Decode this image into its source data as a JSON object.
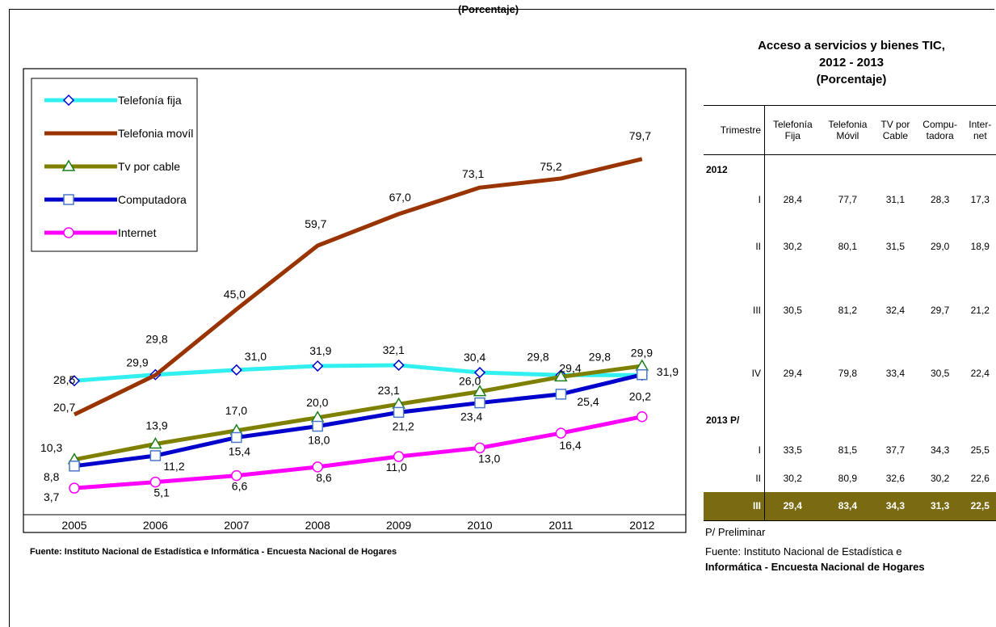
{
  "header": {
    "title": "(Porcentaje)"
  },
  "chart_data": {
    "type": "line",
    "categories": [
      "2005",
      "2006",
      "2007",
      "2008",
      "2009",
      "2010",
      "2011",
      "2012"
    ],
    "ylim": [
      0,
      90
    ],
    "grid": false,
    "legend_position": "top-left",
    "series": [
      {
        "name": "Telefonía fija",
        "color": "#33f0f0",
        "marker": "diamond",
        "values": [
          28.5,
          29.9,
          31.0,
          31.9,
          32.1,
          30.4,
          29.8,
          29.8
        ],
        "labels": [
          "28,5",
          "29,9",
          "31,0",
          "31,9",
          "32,1",
          "30,4",
          "29,8",
          "29,8"
        ]
      },
      {
        "name": "Telefonia movíl",
        "color": "#993300",
        "marker": "none",
        "values": [
          20.7,
          29.8,
          45.0,
          59.7,
          67.0,
          73.1,
          75.2,
          79.7
        ],
        "labels": [
          "20,7",
          "29,8",
          "45,0",
          "59,7",
          "67,0",
          "73,1",
          "75,2",
          "79,7"
        ]
      },
      {
        "name": "Tv por cable",
        "color": "#808000",
        "marker": "triangle",
        "values": [
          10.3,
          13.9,
          17.0,
          20.0,
          23.1,
          26.0,
          29.4,
          31.9
        ],
        "labels": [
          "10,3",
          "13,9",
          "17,0",
          "20,0",
          "23,1",
          "26,0",
          "29,4",
          "31,9"
        ]
      },
      {
        "name": "Computadora",
        "color": "#0000cc",
        "marker": "square",
        "values": [
          8.8,
          11.2,
          15.4,
          18.0,
          21.2,
          23.4,
          25.4,
          29.9
        ],
        "labels": [
          "8,8",
          "11,2",
          "15,4",
          "18,0",
          "21,2",
          "23,4",
          "25,4",
          "29,9"
        ]
      },
      {
        "name": "Internet",
        "color": "#ff00ff",
        "marker": "circle",
        "values": [
          3.7,
          5.1,
          6.6,
          8.6,
          11.0,
          13.0,
          16.4,
          20.2
        ],
        "labels": [
          "3,7",
          "5,1",
          "6,6",
          "8,6",
          "11,0",
          "13,0",
          "16,4",
          "20,2"
        ]
      }
    ]
  },
  "chart_source": "Fuente: Instituto Nacional de Estadística e Informática - Encuesta Nacional de Hogares",
  "table": {
    "title_line1": "Acceso a servicios y bienes TIC,",
    "title_line2": "2012 - 2013",
    "title_line3": "(Porcentaje)",
    "header": {
      "trimestre": "Trimestre",
      "c1a": "Telefonía",
      "c1b": "Fija",
      "c2a": "Telefonia",
      "c2b": "Móvil",
      "c3a": "TV por",
      "c3b": "Cable",
      "c4a": "Compu-",
      "c4b": "tadora",
      "c5a": "Inter-",
      "c5b": "net"
    },
    "year_2012": "2012",
    "year_2013": "2013 P/",
    "rows": [
      {
        "q": "I",
        "v": [
          "28,4",
          "77,7",
          "31,1",
          "28,3",
          "17,3"
        ]
      },
      {
        "q": "II",
        "v": [
          "30,2",
          "80,1",
          "31,5",
          "29,0",
          "18,9"
        ]
      },
      {
        "q": "III",
        "v": [
          "30,5",
          "81,2",
          "32,4",
          "29,7",
          "21,2"
        ]
      },
      {
        "q": "IV",
        "v": [
          "29,4",
          "79,8",
          "33,4",
          "30,5",
          "22,4"
        ]
      },
      {
        "q": "I",
        "v": [
          "33,5",
          "81,5",
          "37,7",
          "34,3",
          "25,5"
        ]
      },
      {
        "q": "II",
        "v": [
          "30,2",
          "80,9",
          "32,6",
          "30,2",
          "22,6"
        ]
      },
      {
        "q": "III",
        "v": [
          "29,4",
          "83,4",
          "34,3",
          "31,3",
          "22,5"
        ]
      }
    ],
    "highlight_color": "#7a6a12",
    "note": "P/ Preliminar",
    "source_part1": "Fuente: Instituto Nacional de Estadística e",
    "source_part2": "Informática - Encuesta Nacional de Hogares"
  }
}
